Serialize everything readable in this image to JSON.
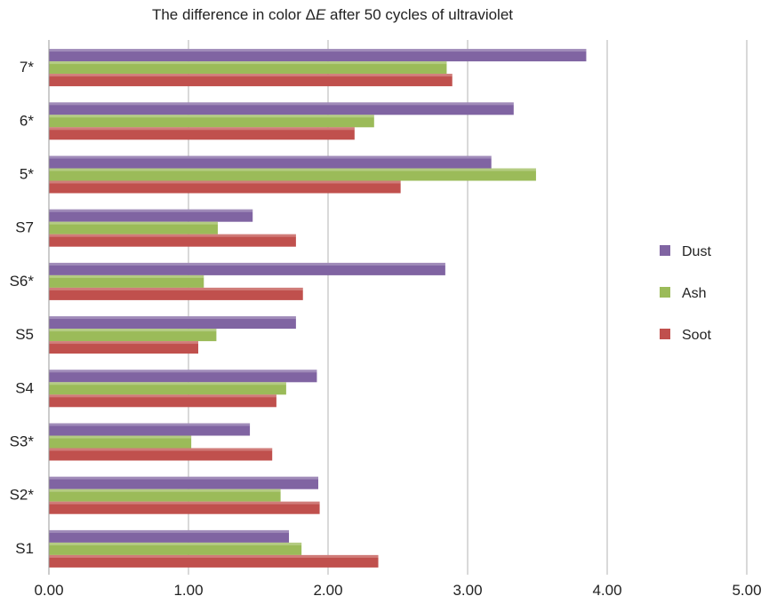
{
  "chart_data": {
    "type": "bar",
    "orientation": "horizontal",
    "title": {
      "prefix": "The difference in color ",
      "delta": "Δ",
      "var": "E",
      "suffix": " after 50 cycles of ultraviolet"
    },
    "xlabel": "",
    "ylabel": "",
    "xlim": [
      0,
      5
    ],
    "x_ticks": [
      "0.00",
      "1.00",
      "2.00",
      "3.00",
      "4.00",
      "5.00"
    ],
    "grid": true,
    "legend_position": "right",
    "categories": [
      "7*",
      "6*",
      "5*",
      "S7",
      "S6*",
      "S5",
      "S4",
      "S3*",
      "S2*",
      "S1"
    ],
    "series": [
      {
        "name": "Dust",
        "color": "#8064a2",
        "values": [
          3.85,
          3.33,
          3.17,
          1.46,
          2.84,
          1.77,
          1.92,
          1.44,
          1.93,
          1.72
        ]
      },
      {
        "name": "Ash",
        "color": "#9bbb59",
        "values": [
          2.85,
          2.33,
          3.49,
          1.21,
          1.11,
          1.2,
          1.7,
          1.02,
          1.66,
          1.81
        ]
      },
      {
        "name": "Soot",
        "color": "#c0504d",
        "values": [
          2.89,
          2.19,
          2.52,
          1.77,
          1.82,
          1.07,
          1.63,
          1.6,
          1.94,
          2.36
        ]
      }
    ]
  }
}
